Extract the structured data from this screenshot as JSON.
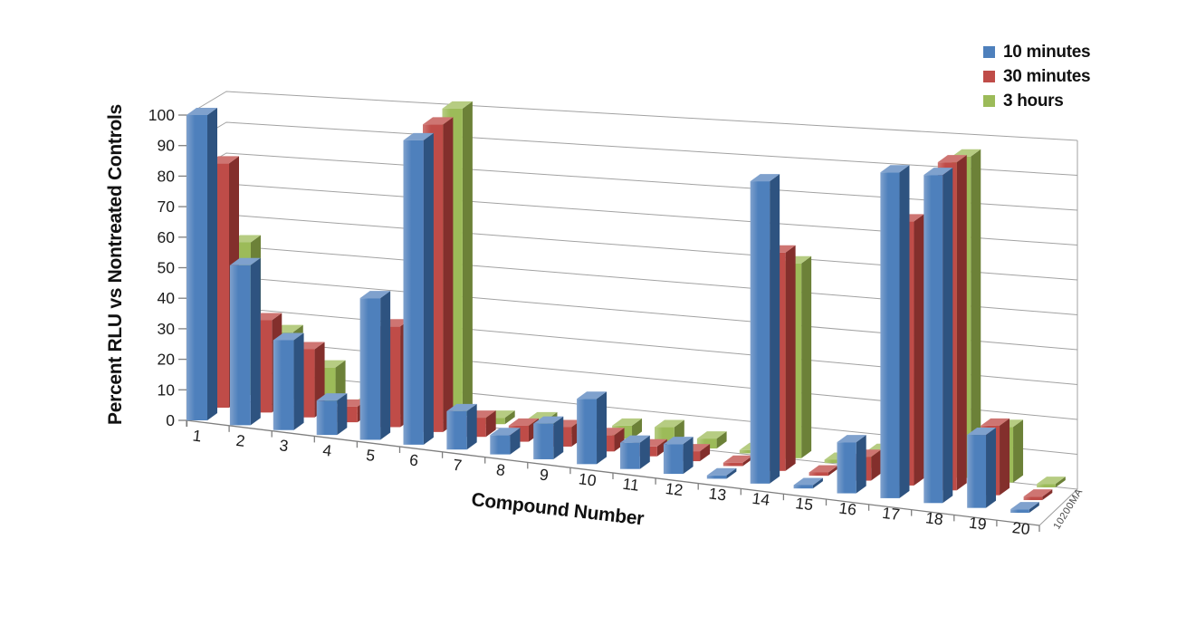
{
  "chart_data": {
    "type": "bar",
    "projection": "3d",
    "title": "",
    "xlabel": "Compound Number",
    "ylabel": "Percent RLU vs Nontreated Controls",
    "ylim": [
      0,
      100
    ],
    "ytick_step": 10,
    "yticks": [
      0,
      10,
      20,
      30,
      40,
      50,
      60,
      70,
      80,
      90,
      100
    ],
    "grid": true,
    "legend_position": "top-right",
    "watermark": "10200MA",
    "categories": [
      "1",
      "2",
      "3",
      "4",
      "5",
      "6",
      "7",
      "8",
      "9",
      "10",
      "11",
      "12",
      "13",
      "14",
      "15",
      "16",
      "17",
      "18",
      "19",
      "20"
    ],
    "series": [
      {
        "name": "10 minutes",
        "color": "#4E80BC",
        "color_dark": "#2E5380",
        "color_light": "#7FA1CD",
        "values": [
          100,
          52,
          29,
          11,
          45,
          96,
          12,
          6,
          11,
          20,
          8,
          9,
          1,
          90,
          1,
          15,
          95,
          95,
          21,
          1
        ]
      },
      {
        "name": "30 minutes",
        "color": "#BF4C48",
        "color_dark": "#832F2C",
        "color_light": "#CE7572",
        "values": [
          80,
          30,
          22,
          5,
          32,
          97,
          6,
          5,
          6,
          5,
          3,
          3,
          1,
          65,
          1,
          7,
          77,
          95,
          20,
          1
        ]
      },
      {
        "name": "3 hours",
        "color": "#9CBB59",
        "color_dark": "#6C8138",
        "color_light": "#B6CC82",
        "values": [
          50,
          22,
          12,
          3,
          25,
          98,
          2,
          3,
          2,
          4,
          5,
          3,
          1,
          58,
          1,
          5,
          28,
          93,
          16,
          1
        ]
      }
    ]
  }
}
